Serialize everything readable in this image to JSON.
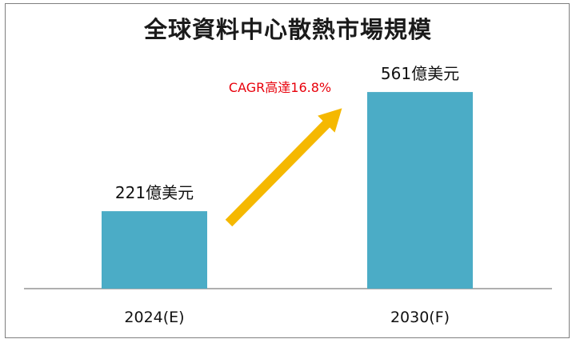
{
  "chart_data": {
    "type": "bar",
    "title": "全球資料中心散熱市場規模",
    "categories": [
      "2024(E)",
      "2030(F)"
    ],
    "values": [
      221,
      561
    ],
    "value_labels": [
      "221億美元",
      "561億美元"
    ],
    "unit": "億美元",
    "xlabel": "",
    "ylabel": "",
    "ylim": [
      0,
      600
    ],
    "grid": false,
    "legend": "none",
    "annotation": {
      "text": "CAGR高達16.8%",
      "color": "#e8000b",
      "arrow_color": "#f5b800"
    },
    "colors": {
      "bar": "#4bacc6",
      "axis": "#7f7f7f"
    }
  }
}
